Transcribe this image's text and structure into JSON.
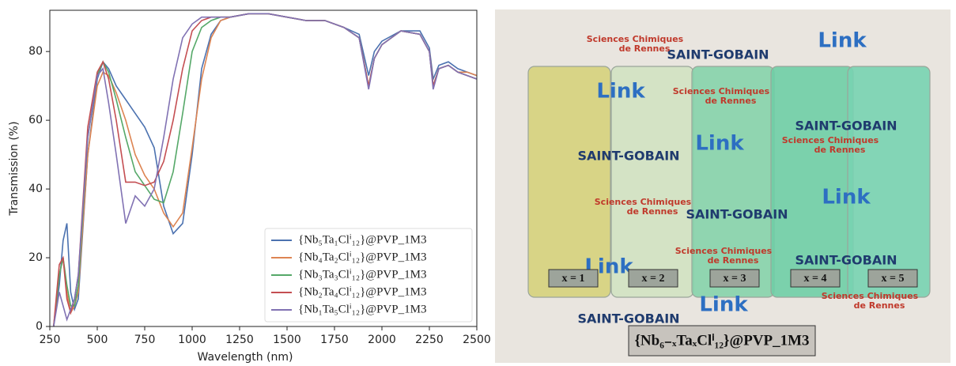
{
  "chart_data": {
    "type": "line",
    "xlabel": "Wavelength (nm)",
    "ylabel": "Transmission (%)",
    "x": [
      270,
      300,
      320,
      340,
      360,
      380,
      400,
      450,
      500,
      530,
      560,
      600,
      650,
      700,
      750,
      800,
      850,
      900,
      950,
      1000,
      1050,
      1100,
      1150,
      1200,
      1300,
      1400,
      1500,
      1600,
      1700,
      1800,
      1880,
      1930,
      1960,
      2000,
      2100,
      2200,
      2250,
      2270,
      2300,
      2350,
      2400,
      2450,
      2500
    ],
    "series": [
      {
        "name": "{Nb₅Ta₁Clⁱ₁₂}@PVP_1M3",
        "color": "#4c72b0",
        "values": [
          0,
          12,
          25,
          30,
          10,
          5,
          8,
          50,
          72,
          77,
          75,
          70,
          66,
          62,
          58,
          52,
          35,
          27,
          30,
          50,
          75,
          85,
          89,
          90,
          91,
          91,
          90,
          89,
          89,
          87,
          85,
          73,
          80,
          83,
          86,
          86,
          81,
          72,
          76,
          77,
          75,
          74,
          73
        ]
      },
      {
        "name": "{Nb₄Ta₂Clⁱ₁₂}@PVP_1M3",
        "color": "#dd8452",
        "values": [
          0,
          15,
          20,
          10,
          4,
          6,
          10,
          50,
          70,
          74,
          73,
          68,
          60,
          50,
          44,
          40,
          33,
          29,
          33,
          52,
          72,
          84,
          89,
          90,
          91,
          91,
          90,
          89,
          89,
          87,
          84,
          70,
          78,
          82,
          86,
          85,
          80,
          70,
          75,
          76,
          74,
          74,
          73
        ]
      },
      {
        "name": "{Nb₃Ta₃Clⁱ₁₂}@PVP_1M3",
        "color": "#55a868",
        "values": [
          0,
          15,
          20,
          12,
          6,
          6,
          12,
          55,
          73,
          77,
          74,
          66,
          55,
          45,
          41,
          37,
          36,
          45,
          62,
          80,
          87,
          89,
          90,
          90,
          91,
          91,
          90,
          89,
          89,
          87,
          84,
          70,
          78,
          82,
          86,
          85,
          80,
          70,
          75,
          76,
          74,
          73,
          72
        ]
      },
      {
        "name": "{Nb₂Ta₄Clⁱ₁₂}@PVP_1M3",
        "color": "#c44e52",
        "values": [
          0,
          18,
          20,
          8,
          4,
          8,
          15,
          58,
          74,
          77,
          72,
          60,
          42,
          42,
          41,
          42,
          48,
          60,
          75,
          86,
          89,
          90,
          90,
          90,
          91,
          91,
          90,
          89,
          89,
          87,
          84,
          70,
          78,
          82,
          86,
          85,
          80,
          70,
          75,
          76,
          74,
          73,
          72
        ]
      },
      {
        "name": "{Nb₁Ta₅Clⁱ₁₂}@PVP_1M3",
        "color": "#8172b3",
        "values": [
          0,
          10,
          6,
          2,
          5,
          8,
          15,
          55,
          73,
          75,
          65,
          50,
          30,
          38,
          35,
          40,
          55,
          72,
          84,
          88,
          90,
          90,
          90,
          90,
          91,
          91,
          90,
          89,
          89,
          87,
          84,
          69,
          78,
          82,
          86,
          85,
          80,
          69,
          75,
          76,
          74,
          73,
          72
        ]
      }
    ],
    "xlim": [
      250,
      2500
    ],
    "xticks": [
      250,
      500,
      750,
      1000,
      1250,
      1500,
      1750,
      2000,
      2250,
      2500
    ],
    "ylim": [
      0,
      92
    ],
    "yticks": [
      0,
      20,
      40,
      60,
      80
    ],
    "legend": "lower right"
  },
  "photo": {
    "slide_labels": [
      "x = 1",
      "x = 2",
      "x = 3",
      "x = 4",
      "x = 5"
    ],
    "caption": "{Nb₆₋ₓTaₓClⁱ₁₂}@PVP_1M3",
    "logos": {
      "saint_gobain": "SAINT-GOBAIN",
      "link": "Link",
      "scr_line1": "Sciences Chimiques",
      "scr_line2": "de Rennes"
    }
  }
}
